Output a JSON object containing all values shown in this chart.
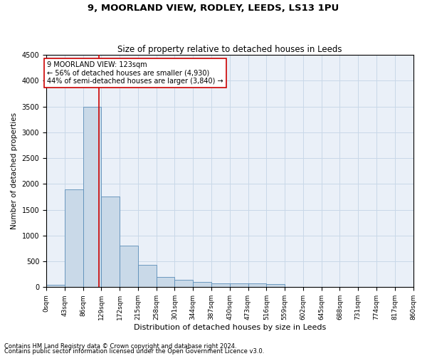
{
  "title": "9, MOORLAND VIEW, RODLEY, LEEDS, LS13 1PU",
  "subtitle": "Size of property relative to detached houses in Leeds",
  "xlabel": "Distribution of detached houses by size in Leeds",
  "ylabel": "Number of detached properties",
  "annotation_line1": "9 MOORLAND VIEW: 123sqm",
  "annotation_line2": "← 56% of detached houses are smaller (4,930)",
  "annotation_line3": "44% of semi-detached houses are larger (3,840) →",
  "bin_edges": [
    0,
    43,
    86,
    129,
    172,
    215,
    258,
    301,
    344,
    387,
    430,
    473,
    516,
    559,
    602,
    645,
    688,
    731,
    774,
    817,
    860
  ],
  "bar_heights": [
    50,
    1900,
    3500,
    1750,
    800,
    430,
    200,
    145,
    100,
    75,
    70,
    70,
    55,
    0,
    0,
    0,
    0,
    0,
    0,
    0
  ],
  "bar_color": "#c9d9e8",
  "bar_edgecolor": "#5b8db8",
  "vline_x": 123,
  "vline_color": "#cc0000",
  "ylim": [
    0,
    4500
  ],
  "yticks": [
    0,
    500,
    1000,
    1500,
    2000,
    2500,
    3000,
    3500,
    4000,
    4500
  ],
  "grid_color": "#c8d8e8",
  "bg_color": "#eaf0f8",
  "fig_bg_color": "#ffffff",
  "footnote1": "Contains HM Land Registry data © Crown copyright and database right 2024.",
  "footnote2": "Contains public sector information licensed under the Open Government Licence v3.0."
}
